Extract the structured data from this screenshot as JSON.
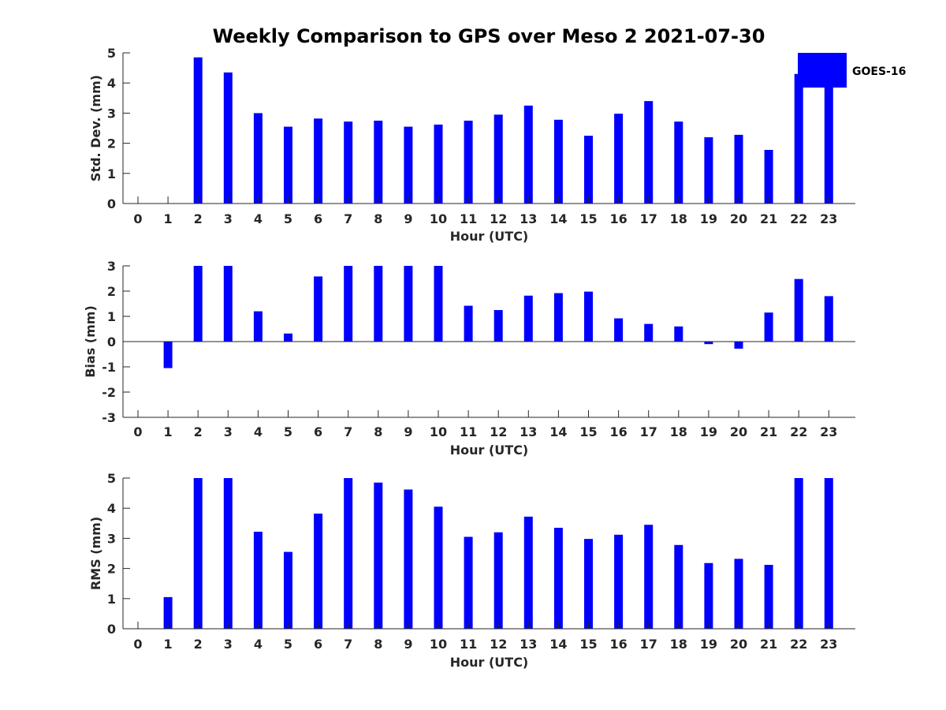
{
  "chart_data": {
    "title": "Weekly Comparison to GPS over Meso 2 2021-07-30",
    "bar_color": "#0000ff",
    "legend": {
      "label": "GOES-16",
      "position": "top-right"
    },
    "panels": [
      {
        "id": "std",
        "type": "bar",
        "xlabel": "Hour (UTC)",
        "ylabel": "Std. Dev. (mm)",
        "ylim": [
          0,
          5
        ],
        "yticks": [
          "0",
          "1",
          "2",
          "3",
          "4",
          "5"
        ],
        "categories": [
          "0",
          "1",
          "2",
          "3",
          "4",
          "5",
          "6",
          "7",
          "8",
          "9",
          "10",
          "11",
          "12",
          "13",
          "14",
          "15",
          "16",
          "17",
          "18",
          "19",
          "20",
          "21",
          "22",
          "23"
        ],
        "values": [
          0,
          0,
          4.85,
          4.35,
          3.0,
          2.55,
          2.82,
          2.72,
          2.75,
          2.55,
          2.62,
          2.75,
          2.95,
          3.25,
          2.78,
          2.25,
          2.98,
          3.4,
          2.72,
          2.2,
          2.28,
          1.78,
          4.3,
          4.5
        ]
      },
      {
        "id": "bias",
        "type": "bar",
        "xlabel": "Hour (UTC)",
        "ylabel": "Bias (mm)",
        "ylim": [
          -3,
          3
        ],
        "yticks": [
          "-3",
          "-2",
          "-1",
          "0",
          "1",
          "2",
          "3"
        ],
        "categories": [
          "0",
          "1",
          "2",
          "3",
          "4",
          "5",
          "6",
          "7",
          "8",
          "9",
          "10",
          "11",
          "12",
          "13",
          "14",
          "15",
          "16",
          "17",
          "18",
          "19",
          "20",
          "21",
          "22",
          "23"
        ],
        "values": [
          0,
          -1.05,
          3.0,
          3.0,
          1.2,
          0.32,
          2.58,
          3.0,
          3.0,
          3.0,
          3.0,
          1.42,
          1.25,
          1.82,
          1.92,
          1.98,
          0.92,
          0.7,
          0.6,
          -0.1,
          -0.28,
          1.15,
          2.48,
          1.8
        ]
      },
      {
        "id": "rms",
        "type": "bar",
        "xlabel": "Hour (UTC)",
        "ylabel": "RMS (mm)",
        "ylim": [
          0,
          5
        ],
        "yticks": [
          "0",
          "1",
          "2",
          "3",
          "4",
          "5"
        ],
        "categories": [
          "0",
          "1",
          "2",
          "3",
          "4",
          "5",
          "6",
          "7",
          "8",
          "9",
          "10",
          "11",
          "12",
          "13",
          "14",
          "15",
          "16",
          "17",
          "18",
          "19",
          "20",
          "21",
          "22",
          "23"
        ],
        "values": [
          0,
          1.05,
          5.0,
          5.0,
          3.22,
          2.55,
          3.82,
          5.0,
          4.85,
          4.62,
          4.05,
          3.05,
          3.2,
          3.72,
          3.35,
          2.98,
          3.12,
          3.45,
          2.78,
          2.18,
          2.32,
          2.12,
          5.0,
          5.0
        ]
      }
    ]
  }
}
